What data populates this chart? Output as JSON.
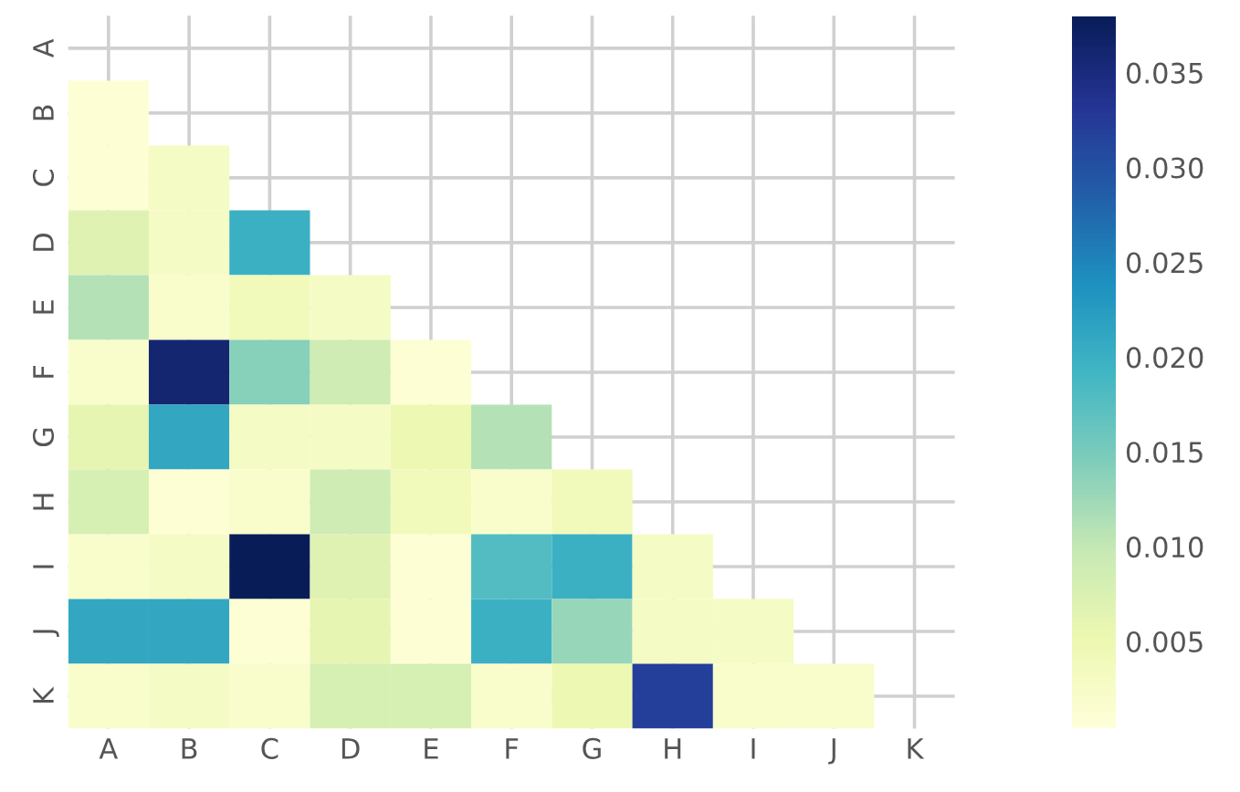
{
  "chart_data": {
    "type": "heatmap",
    "categories": [
      "A",
      "B",
      "C",
      "D",
      "E",
      "F",
      "G",
      "H",
      "I",
      "J",
      "K"
    ],
    "y_categories": [
      "A",
      "B",
      "C",
      "D",
      "E",
      "F",
      "G",
      "H",
      "I",
      "J",
      "K"
    ],
    "cells": [
      [
        null,
        null,
        null,
        null,
        null,
        null,
        null,
        null,
        null,
        null,
        null
      ],
      [
        0.001,
        null,
        null,
        null,
        null,
        null,
        null,
        null,
        null,
        null,
        null
      ],
      [
        0.001,
        0.003,
        null,
        null,
        null,
        null,
        null,
        null,
        null,
        null,
        null
      ],
      [
        0.007,
        0.003,
        0.02,
        null,
        null,
        null,
        null,
        null,
        null,
        null,
        null
      ],
      [
        0.011,
        0.002,
        0.004,
        0.003,
        null,
        null,
        null,
        null,
        null,
        null,
        null
      ],
      [
        0.002,
        0.036,
        0.014,
        0.009,
        0.001,
        null,
        null,
        null,
        null,
        null,
        null
      ],
      [
        0.006,
        0.021,
        0.003,
        0.003,
        0.005,
        0.011,
        null,
        null,
        null,
        null,
        null
      ],
      [
        0.008,
        0.001,
        0.002,
        0.009,
        0.004,
        0.002,
        0.004,
        null,
        null,
        null,
        null
      ],
      [
        0.002,
        0.003,
        0.038,
        0.007,
        0.001,
        0.018,
        0.02,
        0.003,
        null,
        null,
        null
      ],
      [
        0.021,
        0.021,
        0.001,
        0.006,
        0.001,
        0.02,
        0.013,
        0.003,
        0.003,
        null,
        null
      ],
      [
        0.002,
        0.003,
        0.002,
        0.008,
        0.008,
        0.002,
        0.005,
        0.032,
        0.002,
        0.002,
        null
      ]
    ],
    "clim": [
      0.0004,
      0.038
    ],
    "cticks": [
      0.005,
      {
        "value": 0.01,
        "label": "0.010"
      },
      0.015,
      {
        "value": 0.02,
        "label": "0.020"
      },
      0.025,
      {
        "value": 0.03,
        "label": "0.030"
      },
      0.035
    ],
    "grid": true
  }
}
